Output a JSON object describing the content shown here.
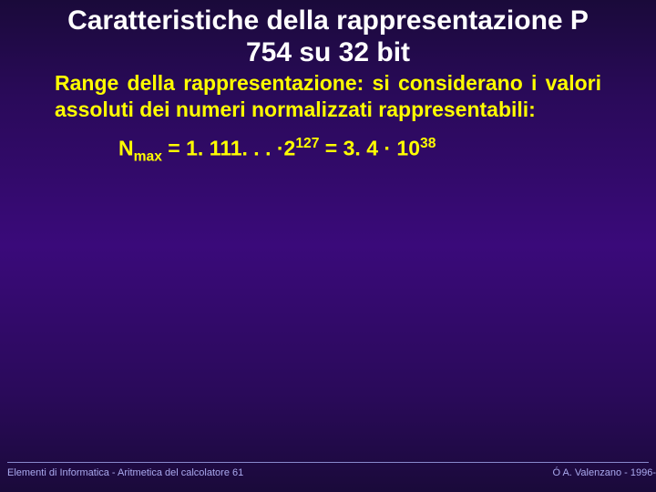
{
  "colors": {
    "title": "#ffffff",
    "bodyText": "#ffff00",
    "formula": "#ffff00",
    "footer": "#aaaaee",
    "hr": "#8888cc"
  },
  "fonts": {
    "titleSize": 30,
    "bodySize": 23,
    "formulaSize": 23,
    "footerSize": 11
  },
  "title": "Caratteristiche della rappresentazione P 754 su 32 bit",
  "body": {
    "hl": "Range",
    "rest": " della rappresentazione: si considerano i valori assoluti dei numeri normalizzati rappresentabili:"
  },
  "formula": {
    "nsym": "N",
    "nsub": "max",
    "eq1": " = 1. 111. . . ·2",
    "exp1": "127",
    "mid": "  = 3. 4 · 10",
    "exp2": "38"
  },
  "footer": {
    "left": "Elementi di Informatica -  Aritmetica del calcolatore 61",
    "right": "Ó  A. Valenzano - 1996-",
    "lineBottom": 508,
    "textBottom": 514
  }
}
